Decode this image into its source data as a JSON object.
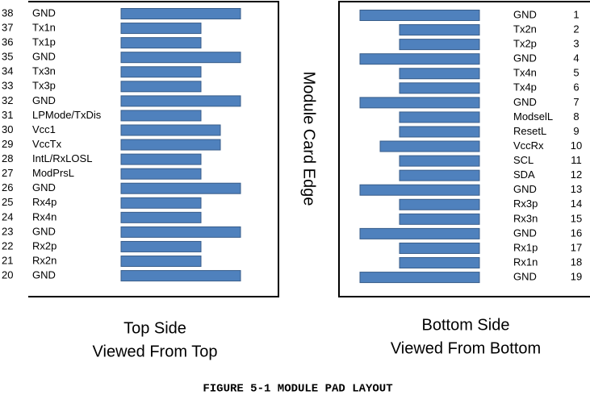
{
  "edge_label": "Module Card Edge",
  "figure_caption": "FIGURE 5-1 MODULE PAD LAYOUT",
  "top_side": {
    "caption": [
      "Top Side",
      "Viewed From Top"
    ],
    "pads": [
      {
        "pin": 38,
        "name": "GND"
      },
      {
        "pin": 37,
        "name": "Tx1n"
      },
      {
        "pin": 36,
        "name": "Tx1p"
      },
      {
        "pin": 35,
        "name": "GND"
      },
      {
        "pin": 34,
        "name": "Tx3n"
      },
      {
        "pin": 33,
        "name": "Tx3p"
      },
      {
        "pin": 32,
        "name": "GND"
      },
      {
        "pin": 31,
        "name": "LPMode/TxDis"
      },
      {
        "pin": 30,
        "name": "Vcc1"
      },
      {
        "pin": 29,
        "name": "VccTx"
      },
      {
        "pin": 28,
        "name": "IntL/RxLOSL"
      },
      {
        "pin": 27,
        "name": "ModPrsL"
      },
      {
        "pin": 26,
        "name": "GND"
      },
      {
        "pin": 25,
        "name": "Rx4p"
      },
      {
        "pin": 24,
        "name": "Rx4n"
      },
      {
        "pin": 23,
        "name": "GND"
      },
      {
        "pin": 22,
        "name": "Rx2p"
      },
      {
        "pin": 21,
        "name": "Rx2n"
      },
      {
        "pin": 20,
        "name": "GND"
      }
    ]
  },
  "bottom_side": {
    "caption": [
      "Bottom Side",
      "Viewed From Bottom"
    ],
    "pads": [
      {
        "pin": 1,
        "name": "GND"
      },
      {
        "pin": 2,
        "name": "Tx2n"
      },
      {
        "pin": 3,
        "name": "Tx2p"
      },
      {
        "pin": 4,
        "name": "GND"
      },
      {
        "pin": 5,
        "name": "Tx4n"
      },
      {
        "pin": 6,
        "name": "Tx4p"
      },
      {
        "pin": 7,
        "name": "GND"
      },
      {
        "pin": 8,
        "name": "ModselL"
      },
      {
        "pin": 9,
        "name": "ResetL"
      },
      {
        "pin": 10,
        "name": "VccRx"
      },
      {
        "pin": 11,
        "name": "SCL"
      },
      {
        "pin": 12,
        "name": "SDA"
      },
      {
        "pin": 13,
        "name": "GND"
      },
      {
        "pin": 14,
        "name": "Rx3p"
      },
      {
        "pin": 15,
        "name": "Rx3n"
      },
      {
        "pin": 16,
        "name": "GND"
      },
      {
        "pin": 17,
        "name": "Rx1p"
      },
      {
        "pin": 18,
        "name": "Rx1n"
      },
      {
        "pin": 19,
        "name": "GND"
      }
    ]
  }
}
